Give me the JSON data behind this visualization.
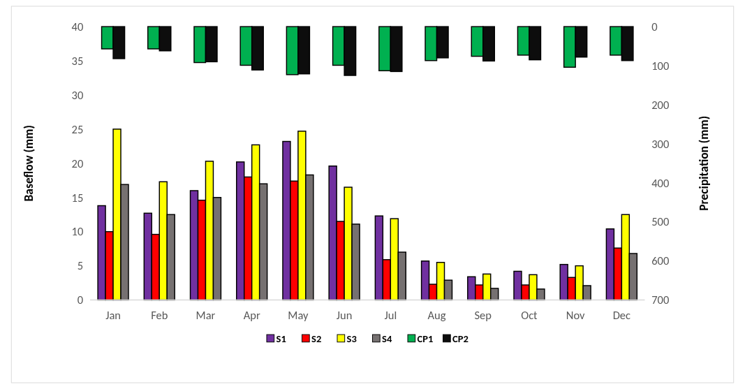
{
  "chart_data": {
    "type": "bar",
    "xlabel": null,
    "ylabel": "Baseflow (mm)",
    "y2label": "Precipitation (mm)",
    "categories": [
      "Jan",
      "Feb",
      "Mar",
      "Apr",
      "May",
      "Jun",
      "Jul",
      "Aug",
      "Sep",
      "Oct",
      "Nov",
      "Dec"
    ],
    "series": [
      {
        "name": "S1",
        "color": "#7030a0",
        "values": [
          13.8,
          12.7,
          16,
          20.2,
          23.2,
          19.6,
          12.3,
          5.7,
          3.4,
          4.2,
          5.2,
          10.4
        ]
      },
      {
        "name": "S2",
        "color": "#ff0000",
        "values": [
          10,
          9.6,
          14.6,
          18,
          17.4,
          11.5,
          5.9,
          2.3,
          2.2,
          2.2,
          3.3,
          7.6
        ]
      },
      {
        "name": "S3",
        "color": "#ffff00",
        "values": [
          25,
          17.3,
          20.3,
          22.7,
          24.7,
          16.5,
          11.9,
          5.5,
          3.8,
          3.7,
          5,
          12.5
        ]
      },
      {
        "name": "S4",
        "color": "#767171",
        "values": [
          16.9,
          12.5,
          15,
          17,
          18.3,
          11.1,
          7,
          2.9,
          1.7,
          1.6,
          2.1,
          6.8
        ]
      },
      {
        "name": "CP1",
        "color": "#00b050",
        "axis": "y2",
        "values": [
          57,
          57,
          92,
          99,
          123,
          99,
          113,
          87,
          76,
          73,
          104,
          73
        ]
      },
      {
        "name": "CP2",
        "color": "#0d0d0d",
        "axis": "y2",
        "values": [
          82,
          62,
          90,
          111,
          121,
          125,
          115,
          80,
          88,
          85,
          78,
          87
        ]
      }
    ],
    "ylim": [
      0,
      40
    ],
    "yticks": [
      0,
      5,
      10,
      15,
      20,
      25,
      30,
      35,
      40
    ],
    "y2lim": [
      700,
      0
    ],
    "y2ticks": [
      0,
      100,
      200,
      300,
      400,
      500,
      600,
      700
    ],
    "grid": false,
    "legend": "bottom"
  }
}
